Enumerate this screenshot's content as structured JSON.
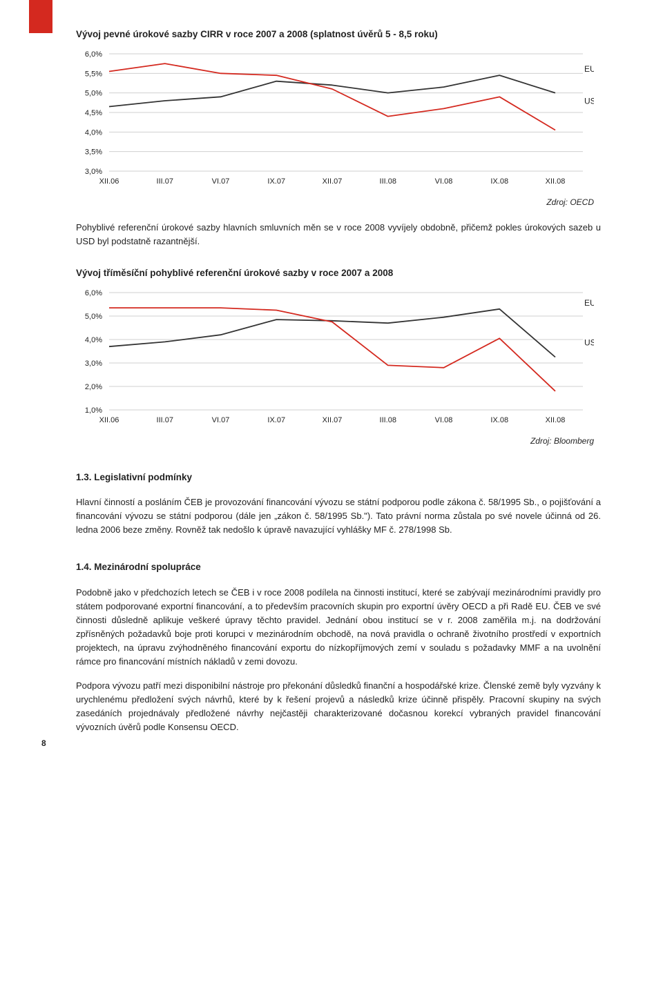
{
  "chart1": {
    "title": "Vývoj pevné úrokové sazby CIRR v roce 2007 a 2008 (splatnost úvěrů 5 - 8,5 roku)",
    "type": "line",
    "x_labels": [
      "XII.06",
      "III.07",
      "VI.07",
      "IX.07",
      "XII.07",
      "III.08",
      "VI.08",
      "IX.08",
      "XII.08"
    ],
    "y_labels": [
      "3,0%",
      "3,5%",
      "4,0%",
      "4,5%",
      "5,0%",
      "5,5%",
      "6,0%"
    ],
    "ymin": 3.0,
    "ymax": 6.0,
    "ystep": 0.5,
    "series": [
      {
        "name": "EUR",
        "label": "EUR",
        "color": "#333333",
        "width": 1.8,
        "values": [
          4.65,
          4.8,
          4.9,
          5.3,
          5.2,
          5.0,
          5.15,
          5.45,
          5.0
        ]
      },
      {
        "name": "USD",
        "label": "USD",
        "color": "#d4291f",
        "width": 1.8,
        "values": [
          5.55,
          5.75,
          5.5,
          5.45,
          5.1,
          4.4,
          4.6,
          4.9,
          4.05
        ]
      }
    ],
    "grid_color": "#cfcfcf",
    "text_color": "#222222",
    "tick_font": 11,
    "label_font": 12,
    "source": "Zdroj: OECD"
  },
  "para1": "Pohyblivé referenční úrokové sazby hlavních smluvních měn se v roce 2008 vyvíjely obdobně, přičemž pokles úrokových sazeb u USD byl podstatně razantnější.",
  "chart2": {
    "title": "Vývoj tříměsíční pohyblivé referenční úrokové sazby v roce 2007 a 2008",
    "type": "line",
    "x_labels": [
      "XII.06",
      "III.07",
      "VI.07",
      "IX.07",
      "XII.07",
      "III.08",
      "VI.08",
      "IX.08",
      "XII.08"
    ],
    "y_labels": [
      "1,0%",
      "2,0%",
      "3,0%",
      "4,0%",
      "5,0%",
      "6,0%"
    ],
    "ymin": 1.0,
    "ymax": 6.0,
    "ystep": 1.0,
    "series": [
      {
        "name": "EUR",
        "label": "EUR",
        "color": "#333333",
        "width": 1.8,
        "values": [
          3.7,
          3.9,
          4.2,
          4.85,
          4.8,
          4.7,
          4.95,
          5.3,
          3.25
        ]
      },
      {
        "name": "USD",
        "label": "USD",
        "color": "#d4291f",
        "width": 1.8,
        "values": [
          5.35,
          5.35,
          5.35,
          5.25,
          4.75,
          2.9,
          2.8,
          4.05,
          1.8
        ]
      }
    ],
    "grid_color": "#cfcfcf",
    "text_color": "#222222",
    "tick_font": 11,
    "label_font": 12,
    "source": "Zdroj: Bloomberg"
  },
  "section_1_3": {
    "heading": "1.3. Legislativní podmínky",
    "para": "Hlavní činností a posláním ČEB je provozování financování vývozu se státní podporou podle zákona č. 58/1995 Sb., o pojišťování a financování vývozu se státní podporou (dále jen „zákon č. 58/1995 Sb.\"). Tato právní norma zůstala po své novele účinná od 26. ledna 2006 beze změny. Rovněž tak nedošlo k úpravě navazující vyhlášky MF č. 278/1998 Sb."
  },
  "section_1_4": {
    "heading": "1.4. Mezinárodní spolupráce",
    "para1": "Podobně jako v předchozích letech se ČEB i v roce 2008 podílela na činnosti institucí, které se zabývají mezinárodními pravidly pro státem podporované exportní financování, a to především pracovních skupin pro exportní úvěry OECD a při Radě EU. ČEB ve své činnosti důsledně aplikuje veškeré úpravy těchto pravidel. Jednání obou institucí se v r. 2008 zaměřila m.j. na dodržování zpřísněných požadavků boje proti korupci v mezinárodním obchodě, na nová pravidla o ochraně životního prostředí v exportních projektech, na úpravu zvýhodněného financování exportu do nízkopříjmových zemí v souladu s požadavky MMF a na uvolnění rámce pro financování místních nákladů v zemi dovozu.",
    "para2": "Podpora vývozu patří mezi disponibilní  nástroje pro překonání důsledků finanční a hospodářské krize. Členské země byly vyzvány k urychlenému předložení svých návrhů, které by k řešení projevů a následků krize účinně přispěly. Pracovní skupiny na svých zasedáních projednávaly předložené návrhy nejčastěji charakterizované dočasnou korekcí vybraných pravidel financování vývozních úvěrů podle Konsensu OECD."
  },
  "page_number": "8"
}
